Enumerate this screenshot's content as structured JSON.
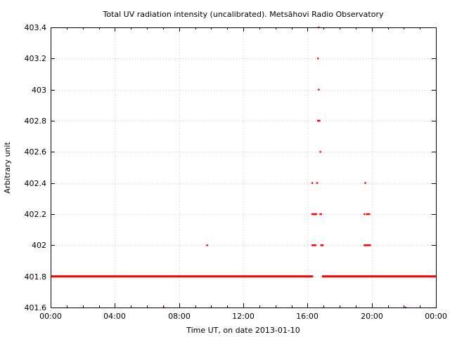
{
  "chart_data": {
    "type": "scatter",
    "title": "Total UV radiation intensity (uncalibrated). Metsähovi Radio Observatory",
    "xlabel": "Time UT, on date 2013-01-10",
    "ylabel": "Arbitrary unit",
    "xlim": [
      0,
      24
    ],
    "ylim": [
      401.6,
      403.4
    ],
    "x_ticks": [
      {
        "value": 0,
        "label": "00:00"
      },
      {
        "value": 4,
        "label": "04:00"
      },
      {
        "value": 8,
        "label": "08:00"
      },
      {
        "value": 12,
        "label": "12:00"
      },
      {
        "value": 16,
        "label": "16:00"
      },
      {
        "value": 20,
        "label": "20:00"
      },
      {
        "value": 24,
        "label": "00:00"
      }
    ],
    "y_ticks": [
      {
        "value": 401.6,
        "label": "401.6"
      },
      {
        "value": 401.8,
        "label": "401.8"
      },
      {
        "value": 402.0,
        "label": "402"
      },
      {
        "value": 402.2,
        "label": "402.2"
      },
      {
        "value": 402.4,
        "label": "402.4"
      },
      {
        "value": 402.6,
        "label": "402.6"
      },
      {
        "value": 402.8,
        "label": "402.8"
      },
      {
        "value": 403.0,
        "label": "403"
      },
      {
        "value": 403.2,
        "label": "403.2"
      },
      {
        "value": 403.4,
        "label": "403.4"
      }
    ],
    "grid": true,
    "legend": "none",
    "point_color": "#ff0000",
    "baseline_series": {
      "y": 401.8,
      "x_ranges": [
        [
          0,
          16.35
        ],
        [
          16.9,
          24
        ]
      ]
    },
    "points": [
      [
        7.05,
        401.6
      ],
      [
        22.1,
        401.6
      ],
      [
        9.75,
        402.0
      ],
      [
        16.3,
        402.0
      ],
      [
        16.35,
        402.0
      ],
      [
        16.4,
        402.0
      ],
      [
        16.45,
        402.0
      ],
      [
        16.5,
        402.0
      ],
      [
        16.85,
        402.0
      ],
      [
        16.9,
        402.0
      ],
      [
        16.95,
        402.0
      ],
      [
        19.55,
        402.0
      ],
      [
        19.6,
        402.0
      ],
      [
        19.65,
        402.0
      ],
      [
        19.7,
        402.0
      ],
      [
        19.75,
        402.0
      ],
      [
        19.8,
        402.0
      ],
      [
        19.85,
        402.0
      ],
      [
        19.9,
        402.0
      ],
      [
        16.3,
        402.2
      ],
      [
        16.35,
        402.2
      ],
      [
        16.4,
        402.2
      ],
      [
        16.45,
        402.2
      ],
      [
        16.5,
        402.2
      ],
      [
        16.55,
        402.2
      ],
      [
        16.8,
        402.2
      ],
      [
        16.85,
        402.2
      ],
      [
        19.55,
        402.2
      ],
      [
        19.7,
        402.2
      ],
      [
        19.75,
        402.2
      ],
      [
        19.8,
        402.2
      ],
      [
        19.85,
        402.2
      ],
      [
        16.3,
        402.4
      ],
      [
        16.6,
        402.4
      ],
      [
        19.6,
        402.4
      ],
      [
        16.8,
        402.6
      ],
      [
        16.65,
        402.8
      ],
      [
        16.7,
        402.8
      ],
      [
        16.75,
        402.8
      ],
      [
        16.7,
        403.0
      ],
      [
        16.65,
        403.2
      ],
      [
        16.7,
        403.4
      ]
    ]
  }
}
